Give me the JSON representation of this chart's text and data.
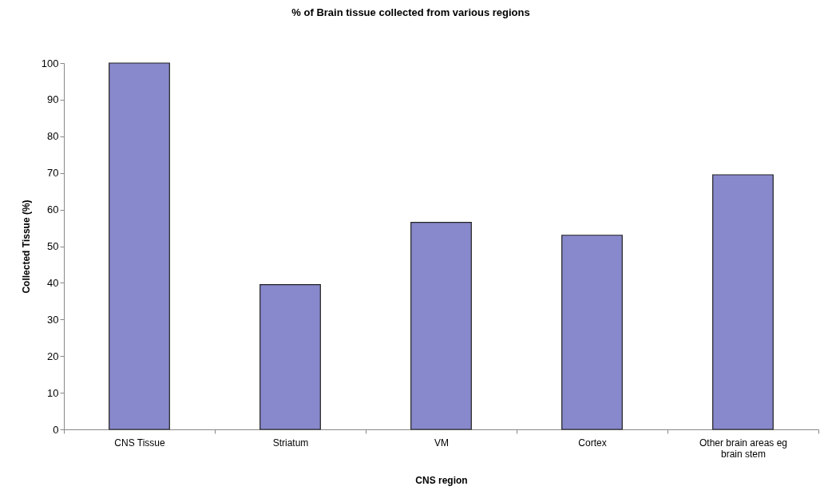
{
  "chart_data": {
    "type": "bar",
    "title": "% of Brain tissue collected from various regions",
    "xlabel": "CNS region",
    "ylabel": "Collected Tissue (%)",
    "categories": [
      "CNS Tissue",
      "Striatum",
      "VM",
      "Cortex",
      "Other brain areas eg\nbrain stem"
    ],
    "values": [
      100,
      39.5,
      56.5,
      53,
      69.5
    ],
    "color": "#8888cc",
    "ylim": [
      0,
      100
    ],
    "yticks": [
      0,
      10,
      20,
      30,
      40,
      50,
      60,
      70,
      80,
      90,
      100
    ],
    "grid": false
  }
}
